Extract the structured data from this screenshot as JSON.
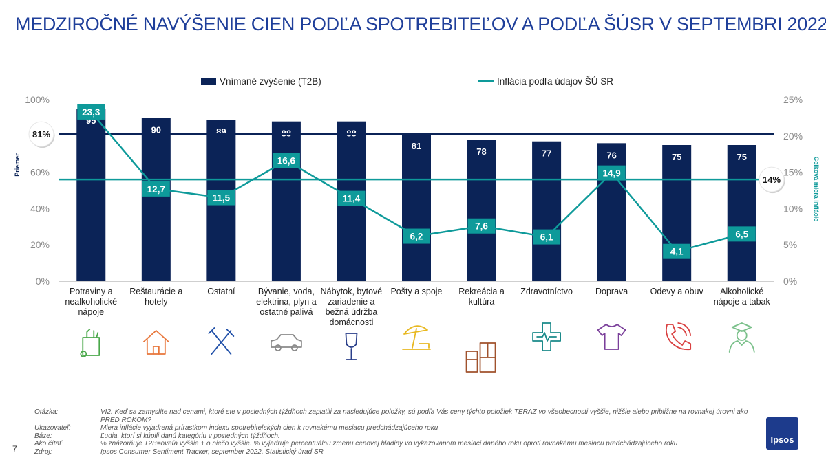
{
  "title": "MEDZIROČNÉ NAVÝŠENIE CIEN PODĽA SPOTREBITEĽOV A PODĽA ŠÚSR V SEPTEMBRI 2022",
  "colors": {
    "bar": "#0b2357",
    "line": "#0e9a9a",
    "title": "#1f3f9a"
  },
  "chart_data": {
    "type": "bar",
    "categories": [
      "Potraviny a nealkoholické nápoje",
      "Reštaurácie a hotely",
      "Ostatní",
      "Bývanie, voda, elektrina, plyn a ostatné palivá",
      "Nábytok, bytové zariadenie a bežná údržba domácnosti",
      "Pošty a spoje",
      "Rekreácia a kultúra",
      "Zdravotníctvo",
      "Doprava",
      "Odevy a obuv",
      "Alkoholické nápoje a tabak"
    ],
    "category_lines": [
      [
        "Potraviny a",
        "nealkoholické",
        "nápoje"
      ],
      [
        "Reštaurácie a",
        "hotely"
      ],
      [
        "Ostatní"
      ],
      [
        "Bývanie, voda,",
        "elektrina, plyn a",
        "ostatné palivá"
      ],
      [
        "Nábytok, bytové",
        "zariadenie a",
        "bežná údržba",
        "domácnosti"
      ],
      [
        "Pošty a spoje"
      ],
      [
        "Rekreácia a",
        "kultúra"
      ],
      [
        "Zdravotníctvo"
      ],
      [
        "Doprava"
      ],
      [
        "Odevy a obuv"
      ],
      [
        "Alkoholické",
        "nápoje a tabak"
      ]
    ],
    "series": [
      {
        "name": "Vnímané zvýšenie (T2B)",
        "type": "bar",
        "axis": "left",
        "values": [
          95,
          90,
          89,
          88,
          88,
          81,
          78,
          77,
          76,
          75,
          75
        ],
        "labels": [
          "95",
          "90",
          "89",
          "88",
          "88",
          "81",
          "78",
          "77",
          "76",
          "75",
          "75"
        ]
      },
      {
        "name": "Inflácia podľa údajov ŠÚ SR",
        "type": "line",
        "axis": "right",
        "values": [
          23.3,
          12.7,
          11.5,
          16.6,
          11.4,
          6.2,
          7.6,
          6.1,
          14.9,
          4.1,
          6.5
        ],
        "labels": [
          "23,3",
          "12,7",
          "11,5",
          "16,6",
          "11,4",
          "6,2",
          "7,6",
          "6,1",
          "14,9",
          "4,1",
          "6,5"
        ]
      }
    ],
    "y_left": {
      "range": [
        0,
        100
      ],
      "ticks": [
        "0%",
        "20%",
        "40%",
        "60%",
        "80%",
        "100%"
      ],
      "title": "Priemer"
    },
    "y_right": {
      "range": [
        0,
        25
      ],
      "ticks": [
        "0%",
        "5%",
        "10%",
        "15%",
        "20%",
        "25%"
      ],
      "title": "Celková miera inflácie"
    },
    "reference_lines": [
      {
        "axis": "left",
        "value": 81,
        "label": "81%"
      },
      {
        "axis": "right",
        "value": 14,
        "label": "14%"
      }
    ],
    "legend_position": "top",
    "grid": false
  },
  "icons": [
    "grocery-bag-icon",
    "house-icon",
    "fork-knife-icon",
    "car-icon",
    "wine-glass-icon",
    "beach-umbrella-icon",
    "furniture-icon",
    "medical-cross-icon",
    "t-shirt-icon",
    "phone-icon",
    "graduate-icon"
  ],
  "notes": [
    {
      "key": "Otázka:",
      "value": "VI2. Keď sa zamyslíte nad cenami, ktoré ste v posledných týždňoch zaplatili za nasledujúce  položky, sú podľa Vás ceny týchto položiek TERAZ vo všeobecnosti vyššie, nižšie alebo približne na rovnakej úrovni ako PRED ROKOM?"
    },
    {
      "key": "Ukazovateľ:",
      "value": "Miera inflácie vyjadrená prírastkom indexu spotrebiteľských cien k rovnakému mesiacu predchádzajúceho roku"
    },
    {
      "key": "Báze:",
      "value": "Ľudia, ktorí si kúpili danú kategóriu v posledných týždňoch."
    },
    {
      "key": "Ako čítať:",
      "value": "% znázorňuje T2B=oveľa vyššie + o niečo vyššie. % vyjadruje percentuálnu zmenu cenovej hladiny vo vykazovanom mesiaci daného roku oproti rovnakému mesiacu predchádzajúceho roku"
    },
    {
      "key": "Zdroj:",
      "value": " Ipsos Consumer Sentiment Tracker, september 2022, Štatistický úrad SR"
    }
  ],
  "page_number": "7",
  "logo_text": "Ipsos"
}
